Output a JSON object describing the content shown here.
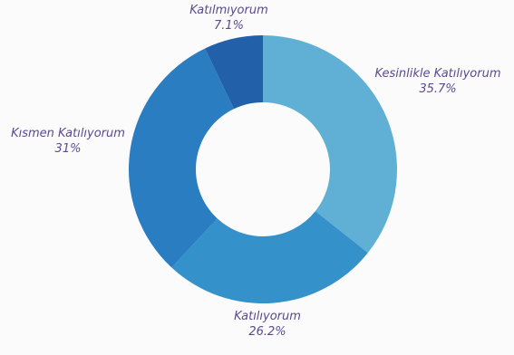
{
  "chart_data": {
    "type": "pie",
    "donut": true,
    "title": "",
    "categories": [
      "Kesinlikle Katılıyorum",
      "Katılıyorum",
      "Kısmen Katılıyorum",
      "Katılmıyorum"
    ],
    "values": [
      35.7,
      26.2,
      31,
      7.1
    ],
    "value_labels": [
      "35.7%",
      "26.2%",
      "31%",
      "7.1%"
    ],
    "colors": [
      "#5fb0d4",
      "#3591ca",
      "#2a7dc1",
      "#2260a9"
    ],
    "start_angle_deg": 0,
    "direction": "clockwise",
    "legend": "none"
  }
}
